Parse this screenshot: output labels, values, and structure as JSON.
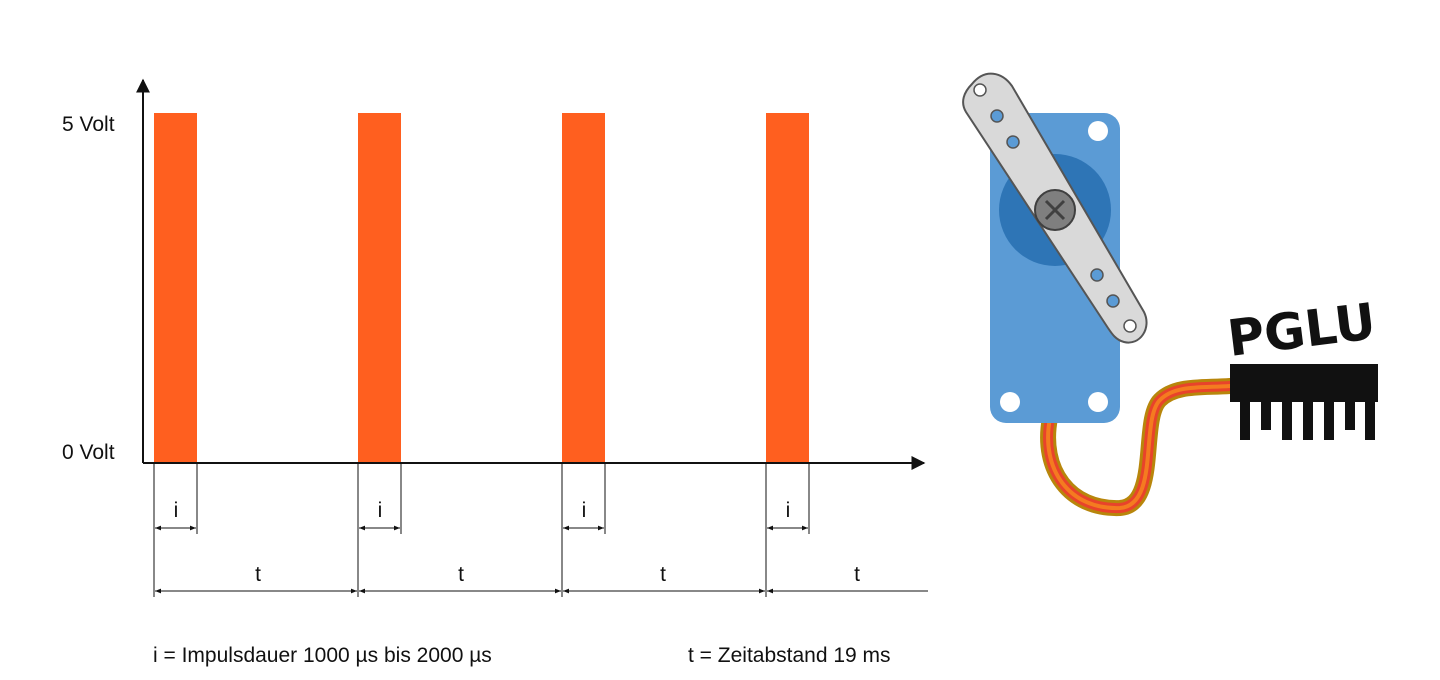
{
  "labels": {
    "y_high": "5 Volt",
    "y_low": "0 Volt",
    "pulse_symbol": "i",
    "period_symbol": "t"
  },
  "legend": {
    "impulse": "i = Impulsdauer 1000 µs bis 2000 µs",
    "period": "t = Zeitabstand 19 ms"
  },
  "logo": {
    "text": "PGLU"
  },
  "colors": {
    "pulse": "#ff5f1f",
    "servo_body": "#5b9bd5",
    "servo_gear": "#2e75b6",
    "servo_arm": "#d9d9d9",
    "wire_orange": "#f47b20",
    "wire_red": "#e8432b",
    "wire_brown": "#b8860b",
    "logo": "#111111"
  },
  "icons": [
    "servo-motor-icon",
    "pglu-chip-logo-icon"
  ]
}
